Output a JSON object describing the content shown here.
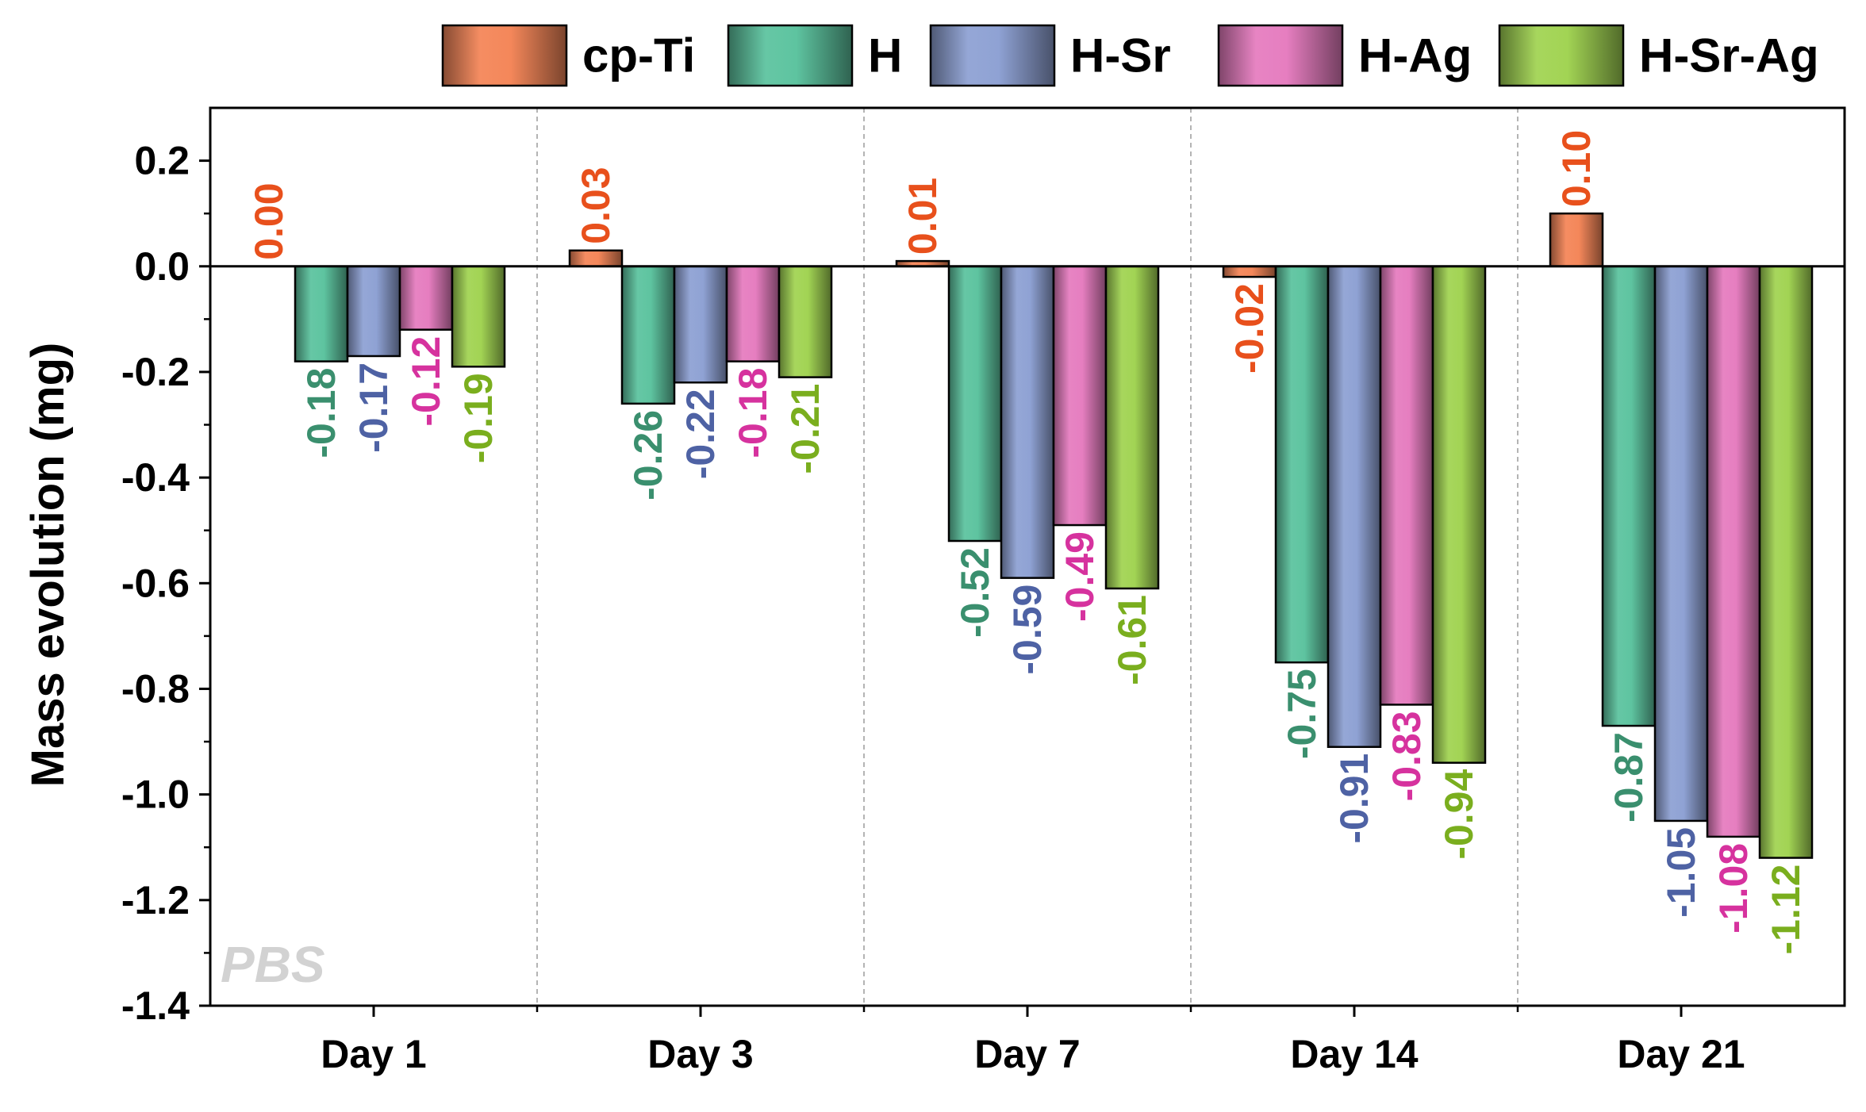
{
  "chart_data": {
    "type": "bar",
    "ylabel": "Mass evolution (mg)",
    "xlabel": "",
    "ylim": [
      -1.4,
      0.3
    ],
    "yticks": [
      0.2,
      0.0,
      -0.2,
      -0.4,
      -0.6,
      -0.8,
      -1.0,
      -1.2,
      -1.4
    ],
    "ytick_labels": [
      "0.2",
      "0.0",
      "-0.2",
      "-0.4",
      "-0.6",
      "-0.8",
      "-1.0",
      "-1.2",
      "-1.4"
    ],
    "categories": [
      "Day 1",
      "Day 3",
      "Day 7",
      "Day 14",
      "Day 21"
    ],
    "annotation": "PBS",
    "legend_position": "top",
    "series": [
      {
        "name": "cp-Ti",
        "color": "#f4875a",
        "label_color": "#e8501c",
        "values": [
          0.0,
          0.03,
          0.01,
          -0.02,
          0.1
        ],
        "labels": [
          "0.00",
          "0.03",
          "0.01",
          "-0.02",
          "0.10"
        ]
      },
      {
        "name": "H",
        "color": "#5ec4a0",
        "label_color": "#3a8f6e",
        "values": [
          -0.18,
          -0.26,
          -0.52,
          -0.75,
          -0.87
        ],
        "labels": [
          "-0.18",
          "-0.26",
          "-0.52",
          "-0.75",
          "-0.87"
        ]
      },
      {
        "name": "H-Sr",
        "color": "#8fa2d4",
        "label_color": "#4e62a4",
        "values": [
          -0.17,
          -0.22,
          -0.59,
          -0.91,
          -1.05
        ],
        "labels": [
          "-0.17",
          "-0.22",
          "-0.59",
          "-0.91",
          "-1.05"
        ]
      },
      {
        "name": "H-Ag",
        "color": "#e67ec0",
        "label_color": "#d6329e",
        "values": [
          -0.12,
          -0.18,
          -0.49,
          -0.83,
          -1.08
        ],
        "labels": [
          "-0.12",
          "-0.18",
          "-0.49",
          "-0.83",
          "-1.08"
        ]
      },
      {
        "name": "H-Sr-Ag",
        "color": "#a2d454",
        "label_color": "#7aae1e",
        "values": [
          -0.19,
          -0.21,
          -0.61,
          -0.94,
          -1.12
        ],
        "labels": [
          "-0.19",
          "-0.21",
          "-0.61",
          "-0.94",
          "-1.12"
        ]
      }
    ]
  }
}
